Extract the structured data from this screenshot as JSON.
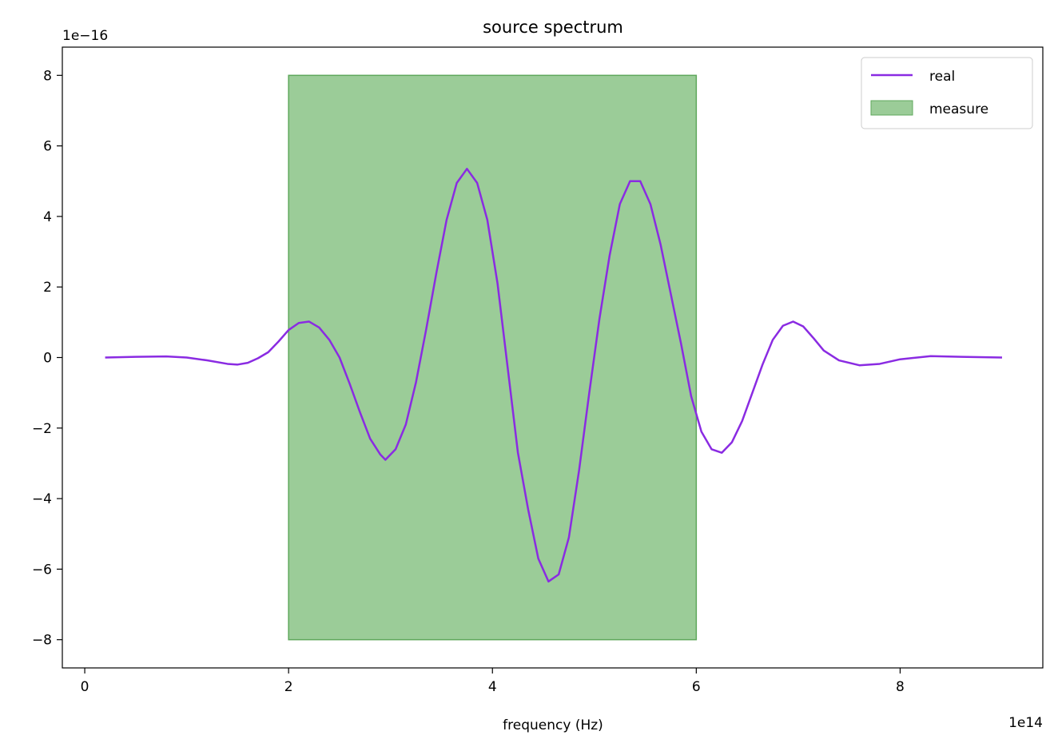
{
  "chart_data": {
    "type": "line",
    "title": "source spectrum",
    "xlabel": "frequency (Hz)",
    "ylabel": "",
    "x_offset_text": "1e14",
    "y_offset_text": "1e−16",
    "xlim": [
      -0.22,
      9.4
    ],
    "ylim": [
      -8.8,
      8.8
    ],
    "xticks": [
      0,
      2,
      4,
      6,
      8
    ],
    "yticks": [
      -8,
      -6,
      -4,
      -2,
      0,
      2,
      4,
      6,
      8
    ],
    "xtick_labels": [
      "0",
      "2",
      "4",
      "6",
      "8"
    ],
    "ytick_labels": [
      "−8",
      "−6",
      "−4",
      "−2",
      "0",
      "2",
      "4",
      "6",
      "8"
    ],
    "legend_position": "top-right",
    "series": [
      {
        "name": "real",
        "color": "#8a2be2",
        "x": [
          0.2,
          0.5,
          0.8,
          1.0,
          1.2,
          1.4,
          1.5,
          1.6,
          1.7,
          1.8,
          1.9,
          2.0,
          2.1,
          2.2,
          2.3,
          2.4,
          2.5,
          2.6,
          2.7,
          2.8,
          2.9,
          2.95,
          3.05,
          3.15,
          3.25,
          3.35,
          3.45,
          3.55,
          3.65,
          3.75,
          3.85,
          3.95,
          4.05,
          4.15,
          4.25,
          4.35,
          4.45,
          4.55,
          4.65,
          4.75,
          4.85,
          4.95,
          5.05,
          5.15,
          5.25,
          5.35,
          5.45,
          5.55,
          5.65,
          5.75,
          5.85,
          5.95,
          6.05,
          6.15,
          6.25,
          6.35,
          6.45,
          6.55,
          6.65,
          6.75,
          6.85,
          6.95,
          7.05,
          7.15,
          7.25,
          7.4,
          7.6,
          7.8,
          8.0,
          8.3,
          8.6,
          9.0
        ],
        "y": [
          0.0,
          0.02,
          0.03,
          0.0,
          -0.08,
          -0.18,
          -0.2,
          -0.15,
          -0.02,
          0.15,
          0.45,
          0.78,
          0.98,
          1.02,
          0.85,
          0.5,
          0.0,
          -0.75,
          -1.55,
          -2.3,
          -2.75,
          -2.9,
          -2.6,
          -1.9,
          -0.7,
          0.8,
          2.4,
          3.9,
          4.95,
          5.35,
          4.95,
          3.9,
          2.1,
          -0.3,
          -2.7,
          -4.3,
          -5.7,
          -6.35,
          -6.15,
          -5.1,
          -3.2,
          -1.0,
          1.1,
          2.9,
          4.35,
          5.0,
          5.0,
          4.35,
          3.2,
          1.8,
          0.4,
          -1.1,
          -2.1,
          -2.6,
          -2.7,
          -2.4,
          -1.8,
          -1.0,
          -0.2,
          0.5,
          0.9,
          1.02,
          0.88,
          0.55,
          0.2,
          -0.08,
          -0.22,
          -0.18,
          -0.05,
          0.04,
          0.02,
          0.0
        ]
      }
    ],
    "spans": [
      {
        "name": "measure",
        "x_range": [
          2.0,
          6.0
        ],
        "y_range": [
          -8.0,
          8.0
        ],
        "fill_color": "#9bcc98",
        "edge_color": "#5fa85c"
      }
    ]
  }
}
